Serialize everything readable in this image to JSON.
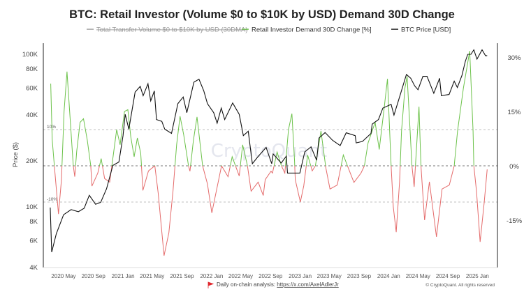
{
  "chart_data": {
    "type": "line",
    "title": "BTC: Retail Investor (Volume $0 to $10K by USD) Demand 30D Change",
    "legend": [
      {
        "label": "Total Transfer Volume $0 to $10K by USD (30DMA)",
        "color": "#9a9a9a",
        "hidden": true
      },
      {
        "label": "Retail Investor Demand 30D Change [%]",
        "color": "#6cc24a"
      },
      {
        "label": "BTC Price [USD]",
        "color": "#111111"
      }
    ],
    "legend_placement": "top",
    "ylabel": "Price ($)",
    "y_left": {
      "scale": "log",
      "range": [
        4000,
        117000
      ],
      "ticks": [
        100000,
        80000,
        60000,
        40000,
        20000,
        10000,
        8000,
        6000,
        4000
      ],
      "tick_labels": [
        "100K",
        "80K",
        "60K",
        "40K",
        "20K",
        "10K",
        "8K",
        "6K",
        "4K"
      ]
    },
    "y_right": {
      "scale": "linear",
      "range": [
        -27.9,
        33.8
      ],
      "ticks": [
        30,
        15,
        0,
        -15
      ],
      "tick_labels": [
        "30%",
        "15%",
        "0%",
        "-15%"
      ]
    },
    "guides": [
      {
        "value": 10,
        "label": "10%"
      },
      {
        "value": 0,
        "label": ""
      },
      {
        "value": -10,
        "label": "-10%"
      }
    ],
    "x_tick_labels": [
      "2020 May",
      "2020 Sep",
      "2021 Jan",
      "2021 May",
      "2021 Sep",
      "2022 Jan",
      "2022 May",
      "2022 Sep",
      "2023 Jan",
      "2023 May",
      "2023 Sep",
      "2024 Jan",
      "2024 May",
      "2024 Sep",
      "2025 Jan"
    ],
    "x_range": [
      "2020-03-07",
      "2025-03-01"
    ],
    "positive_color": "#6cc24a",
    "negative_color": "#e46a6a",
    "watermark": "CryptoQuant",
    "series": [
      {
        "name": "Retail Investor Demand 30D Change [%]",
        "axis": "right",
        "points": [
          [
            "2020-03-09",
            22.7
          ],
          [
            "2020-03-15",
            7.3
          ],
          [
            "2020-03-24",
            0
          ],
          [
            "2020-04-10",
            -13.3
          ],
          [
            "2020-04-22",
            -4
          ],
          [
            "2020-05-03",
            15
          ],
          [
            "2020-05-15",
            26
          ],
          [
            "2020-05-26",
            15
          ],
          [
            "2020-06-10",
            0
          ],
          [
            "2020-06-16",
            -3
          ],
          [
            "2020-06-24",
            4
          ],
          [
            "2020-07-08",
            12
          ],
          [
            "2020-07-22",
            13
          ],
          [
            "2020-08-07",
            7
          ],
          [
            "2020-08-21",
            0
          ],
          [
            "2020-08-26",
            -5.6
          ],
          [
            "2020-09-19",
            -2
          ],
          [
            "2020-10-03",
            2
          ],
          [
            "2020-10-17",
            -3.5
          ],
          [
            "2020-11-07",
            -4.5
          ],
          [
            "2020-11-16",
            0
          ],
          [
            "2020-12-06",
            10
          ],
          [
            "2020-12-20",
            5.8
          ],
          [
            "2021-01-07",
            15
          ],
          [
            "2021-01-21",
            15.5
          ],
          [
            "2021-02-02",
            8
          ],
          [
            "2021-02-16",
            2.5
          ],
          [
            "2021-03-01",
            7.7
          ],
          [
            "2021-03-15",
            3.5
          ],
          [
            "2021-03-18",
            0
          ],
          [
            "2021-03-24",
            -6.8
          ],
          [
            "2021-04-16",
            -1.4
          ],
          [
            "2021-05-12",
            0
          ],
          [
            "2021-05-26",
            -7.5
          ],
          [
            "2021-06-19",
            -24.8
          ],
          [
            "2021-07-09",
            -18.5
          ],
          [
            "2021-07-26",
            -7
          ],
          [
            "2021-08-10",
            5.8
          ],
          [
            "2021-08-24",
            13.7
          ],
          [
            "2021-09-08",
            8.6
          ],
          [
            "2021-09-28",
            0
          ],
          [
            "2021-10-04",
            -1.5
          ],
          [
            "2021-10-18",
            7
          ],
          [
            "2021-11-02",
            13.5
          ],
          [
            "2021-11-25",
            0
          ],
          [
            "2021-12-15",
            -5
          ],
          [
            "2022-01-02",
            -13
          ],
          [
            "2022-01-16",
            -8.5
          ],
          [
            "2022-02-11",
            0
          ],
          [
            "2022-03-10",
            -3
          ],
          [
            "2022-03-27",
            2.5
          ],
          [
            "2022-04-25",
            -2.8
          ],
          [
            "2022-05-09",
            5.8
          ],
          [
            "2022-05-29",
            0
          ],
          [
            "2022-06-13",
            -7
          ],
          [
            "2022-07-12",
            -4.5
          ],
          [
            "2022-08-02",
            -8.2
          ],
          [
            "2022-08-10",
            -3.8
          ],
          [
            "2022-09-03",
            -1.5
          ],
          [
            "2022-09-09",
            -2
          ],
          [
            "2022-09-28",
            3.8
          ],
          [
            "2022-10-16",
            0
          ],
          [
            "2022-10-30",
            -2
          ],
          [
            "2022-11-14",
            10
          ],
          [
            "2022-11-28",
            14.4
          ],
          [
            "2022-12-09",
            1.3
          ],
          [
            "2022-12-12",
            -3.8
          ],
          [
            "2023-01-02",
            -10
          ],
          [
            "2023-01-16",
            -5.5
          ],
          [
            "2023-02-01",
            3
          ],
          [
            "2023-02-20",
            -1.4
          ],
          [
            "2023-03-05",
            0
          ],
          [
            "2023-03-28",
            9.6
          ],
          [
            "2023-04-17",
            -0.6
          ],
          [
            "2023-05-04",
            -6.4
          ],
          [
            "2023-06-03",
            -5.3
          ],
          [
            "2023-06-28",
            3
          ],
          [
            "2023-07-15",
            0
          ],
          [
            "2023-08-11",
            -4.6
          ],
          [
            "2023-09-09",
            -2
          ],
          [
            "2023-09-23",
            0
          ],
          [
            "2023-10-08",
            6.3
          ],
          [
            "2023-11-06",
            12
          ],
          [
            "2023-11-23",
            4.5
          ],
          [
            "2023-12-13",
            15.7
          ],
          [
            "2023-12-27",
            24
          ],
          [
            "2024-01-11",
            0
          ],
          [
            "2024-01-20",
            -11.3
          ],
          [
            "2024-02-01",
            -18.3
          ],
          [
            "2024-02-15",
            -4.4
          ],
          [
            "2024-02-23",
            9.6
          ],
          [
            "2024-03-08",
            21.5
          ],
          [
            "2024-03-17",
            24.7
          ],
          [
            "2024-03-29",
            10
          ],
          [
            "2024-04-06",
            0
          ],
          [
            "2024-04-15",
            -5.8
          ],
          [
            "2024-05-05",
            16.3
          ],
          [
            "2024-05-13",
            0
          ],
          [
            "2024-05-28",
            -15
          ],
          [
            "2024-06-17",
            -4.4
          ],
          [
            "2024-07-16",
            -19.6
          ],
          [
            "2024-08-08",
            -6.4
          ],
          [
            "2024-09-07",
            -5.3
          ],
          [
            "2024-09-27",
            0
          ],
          [
            "2024-10-11",
            9.6
          ],
          [
            "2024-11-04",
            21.5
          ],
          [
            "2024-11-30",
            31.7
          ],
          [
            "2024-12-14",
            9.6
          ],
          [
            "2024-12-17",
            0
          ],
          [
            "2024-12-28",
            -7
          ],
          [
            "2025-01-12",
            -21
          ],
          [
            "2025-01-29",
            -10
          ],
          [
            "2025-02-10",
            -1
          ]
        ]
      },
      {
        "name": "BTC Price [USD]",
        "axis": "left",
        "points": [
          [
            "2020-03-07",
            9800
          ],
          [
            "2020-03-13",
            5000
          ],
          [
            "2020-04-01",
            6600
          ],
          [
            "2020-05-01",
            8800
          ],
          [
            "2020-06-01",
            9500
          ],
          [
            "2020-07-01",
            9200
          ],
          [
            "2020-07-25",
            9700
          ],
          [
            "2020-08-15",
            11800
          ],
          [
            "2020-09-10",
            10300
          ],
          [
            "2020-10-01",
            10600
          ],
          [
            "2020-10-25",
            13000
          ],
          [
            "2020-11-20",
            18500
          ],
          [
            "2020-12-15",
            19500
          ],
          [
            "2021-01-01",
            29000
          ],
          [
            "2021-01-10",
            40000
          ],
          [
            "2021-01-25",
            32000
          ],
          [
            "2021-02-20",
            56000
          ],
          [
            "2021-03-13",
            61000
          ],
          [
            "2021-03-25",
            53000
          ],
          [
            "2021-04-14",
            63500
          ],
          [
            "2021-04-25",
            49000
          ],
          [
            "2021-05-10",
            57000
          ],
          [
            "2021-05-19",
            37000
          ],
          [
            "2021-06-10",
            36000
          ],
          [
            "2021-06-22",
            32000
          ],
          [
            "2021-07-20",
            30000
          ],
          [
            "2021-08-15",
            47000
          ],
          [
            "2021-09-06",
            52000
          ],
          [
            "2021-09-21",
            41000
          ],
          [
            "2021-10-20",
            65000
          ],
          [
            "2021-11-10",
            68000
          ],
          [
            "2021-11-30",
            57000
          ],
          [
            "2021-12-15",
            47000
          ],
          [
            "2022-01-10",
            41000
          ],
          [
            "2022-01-24",
            35000
          ],
          [
            "2022-02-10",
            44000
          ],
          [
            "2022-02-24",
            37000
          ],
          [
            "2022-03-29",
            47500
          ],
          [
            "2022-04-25",
            40000
          ],
          [
            "2022-05-12",
            29000
          ],
          [
            "2022-06-01",
            31000
          ],
          [
            "2022-06-18",
            19000
          ],
          [
            "2022-07-10",
            21000
          ],
          [
            "2022-08-14",
            24300
          ],
          [
            "2022-09-06",
            19000
          ],
          [
            "2022-09-12",
            22000
          ],
          [
            "2022-10-15",
            19200
          ],
          [
            "2022-11-05",
            21300
          ],
          [
            "2022-11-10",
            16500
          ],
          [
            "2022-12-31",
            16500
          ],
          [
            "2023-01-20",
            22700
          ],
          [
            "2023-02-15",
            24500
          ],
          [
            "2023-03-10",
            20000
          ],
          [
            "2023-03-20",
            28000
          ],
          [
            "2023-04-14",
            30400
          ],
          [
            "2023-05-15",
            27000
          ],
          [
            "2023-06-15",
            25000
          ],
          [
            "2023-07-10",
            30300
          ],
          [
            "2023-08-16",
            29000
          ],
          [
            "2023-08-20",
            26000
          ],
          [
            "2023-09-15",
            26600
          ],
          [
            "2023-10-20",
            30000
          ],
          [
            "2023-10-25",
            34500
          ],
          [
            "2023-11-20",
            37000
          ],
          [
            "2023-12-08",
            44000
          ],
          [
            "2024-01-11",
            46500
          ],
          [
            "2024-01-23",
            39500
          ],
          [
            "2024-02-15",
            52000
          ],
          [
            "2024-03-14",
            73000
          ],
          [
            "2024-04-01",
            69000
          ],
          [
            "2024-04-17",
            61500
          ],
          [
            "2024-05-01",
            58000
          ],
          [
            "2024-05-21",
            71000
          ],
          [
            "2024-06-07",
            71000
          ],
          [
            "2024-07-05",
            55000
          ],
          [
            "2024-07-29",
            69000
          ],
          [
            "2024-08-05",
            53000
          ],
          [
            "2024-09-06",
            54000
          ],
          [
            "2024-09-27",
            66000
          ],
          [
            "2024-10-10",
            60000
          ],
          [
            "2024-10-29",
            72000
          ],
          [
            "2024-11-12",
            89000
          ],
          [
            "2024-11-22",
            99000
          ],
          [
            "2024-12-05",
            99000
          ],
          [
            "2024-12-17",
            106000
          ],
          [
            "2024-12-30",
            92000
          ],
          [
            "2025-01-20",
            106000
          ],
          [
            "2025-02-03",
            97000
          ],
          [
            "2025-02-10",
            97000
          ]
        ]
      }
    ]
  },
  "footer": {
    "prefix": "Daily on-chain analysis: ",
    "link": "https://x.com/AxelAdlerJr",
    "copyright": "© CryptoQuant. All rights reserved",
    "flag_icon": "red-flag-icon"
  }
}
